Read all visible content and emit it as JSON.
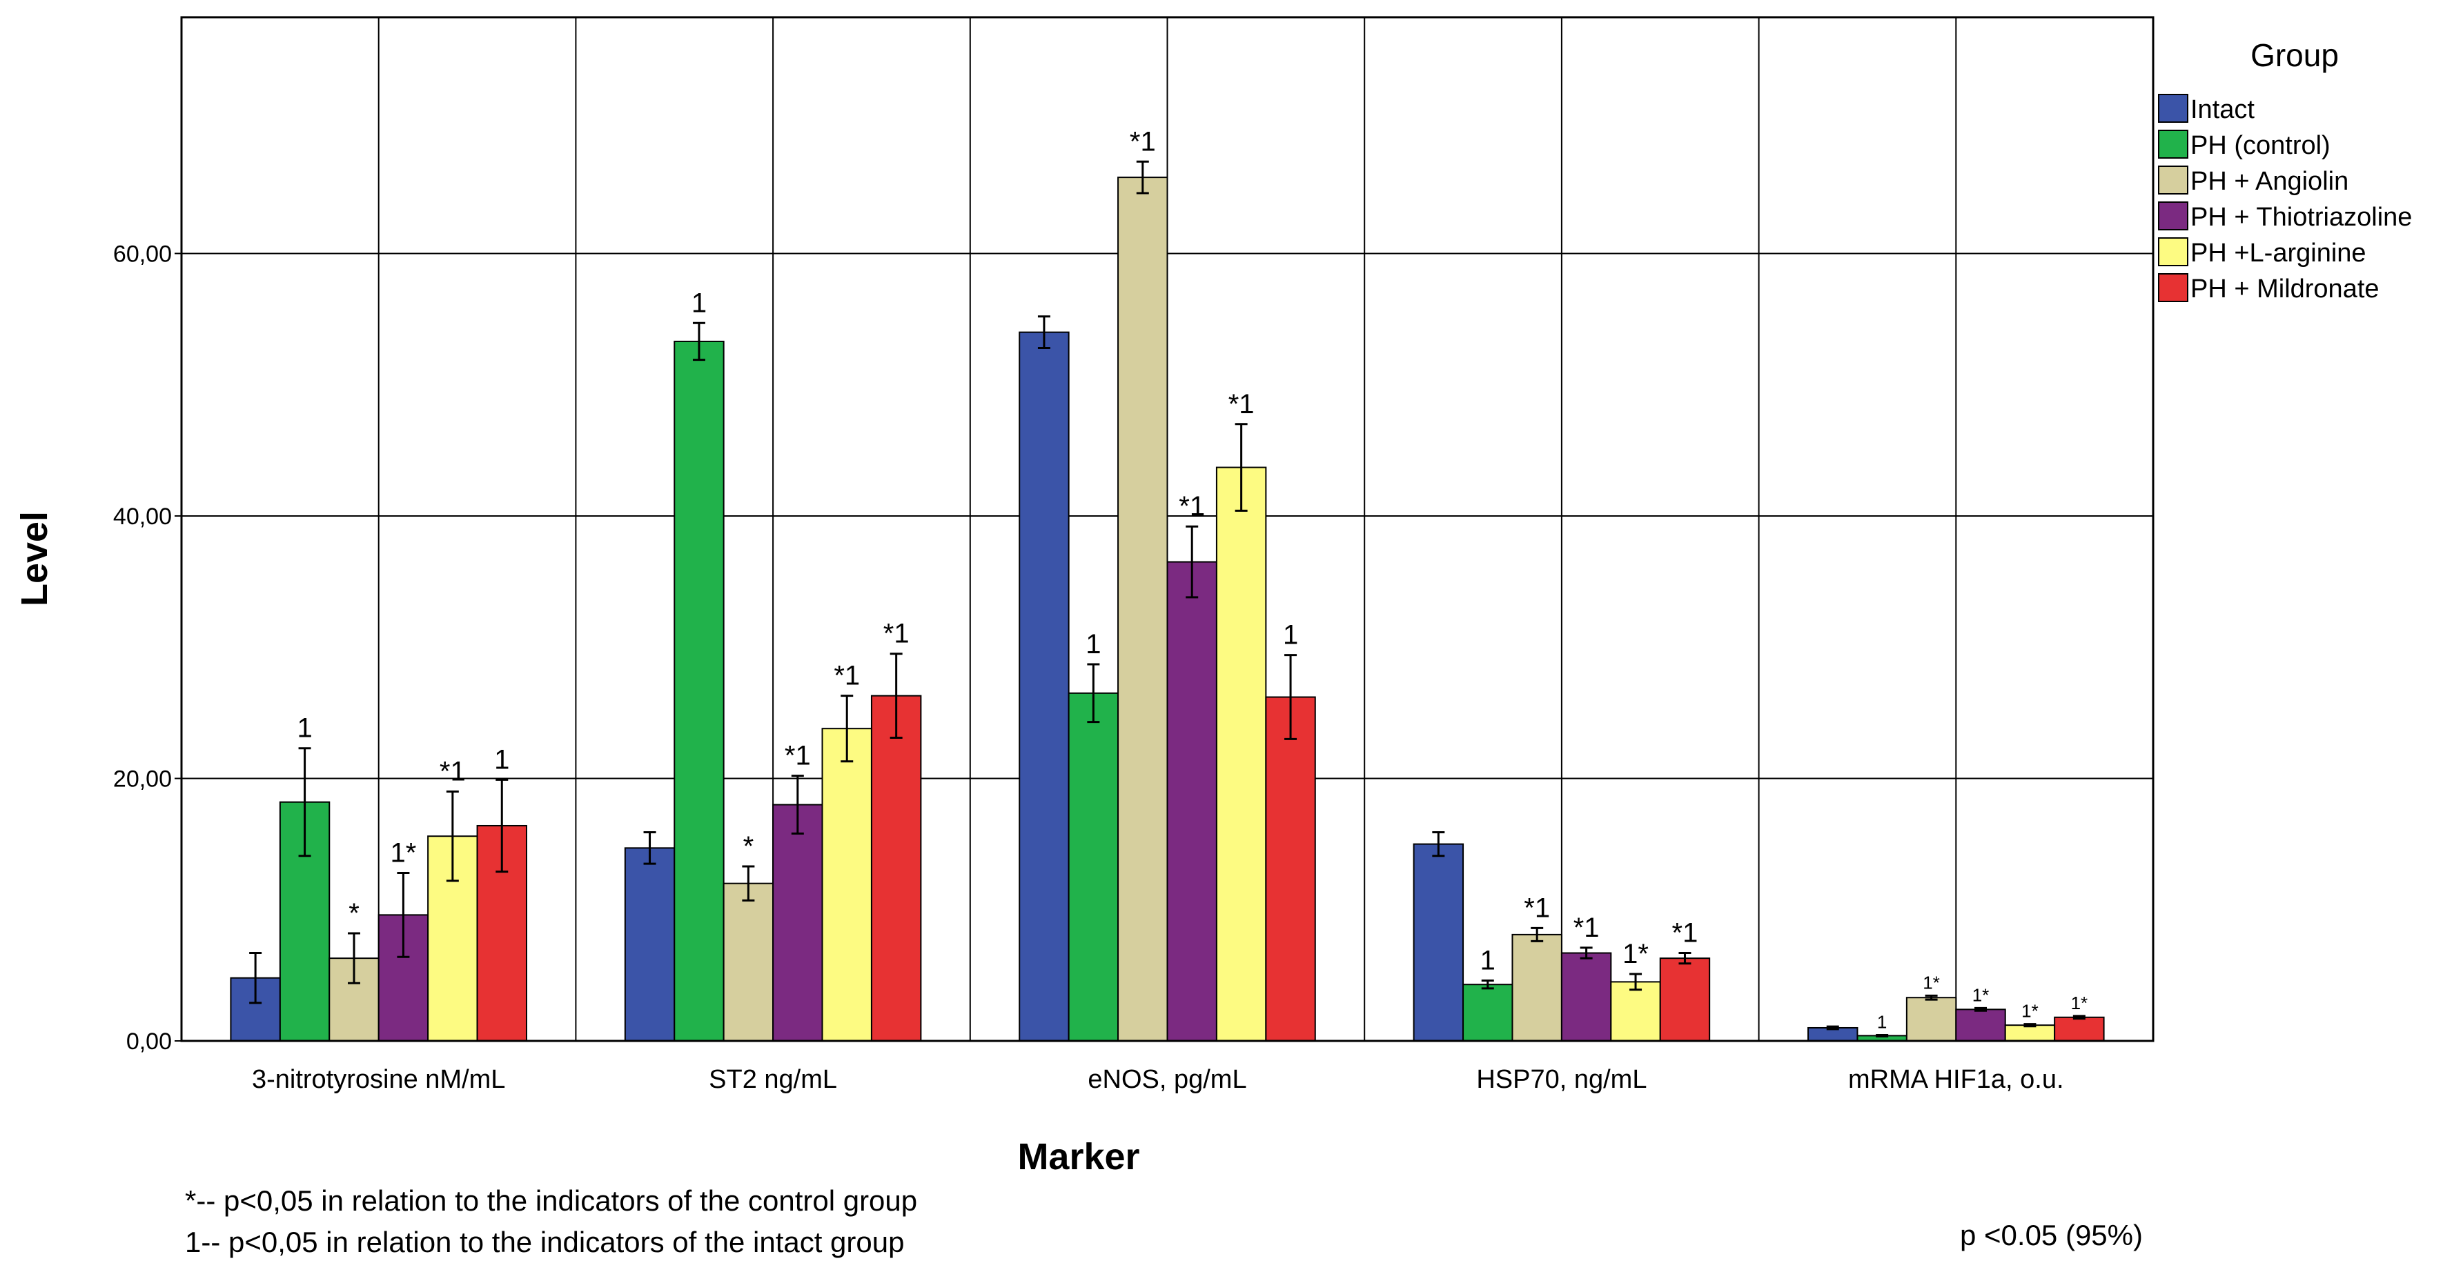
{
  "chart_data": {
    "type": "bar",
    "xlabel": "Marker",
    "ylabel": "Level",
    "ylim": [
      0,
      78
    ],
    "yticks": [
      {
        "value": 0,
        "label": "0,00"
      },
      {
        "value": 20,
        "label": "20,00"
      },
      {
        "value": 40,
        "label": "40,00"
      },
      {
        "value": 60,
        "label": "60,00"
      }
    ],
    "grid": true,
    "legend_title": "Group",
    "legend_position": "right",
    "categories": [
      "3-nitrotyrosine nM/mL",
      "ST2 ng/mL",
      "eNOS, pg/mL",
      "HSP70, ng/mL",
      "mRMA HIF1a, o.u."
    ],
    "series": [
      {
        "name": "Intact",
        "color": "#3b54a8",
        "values": [
          4.8,
          14.7,
          54.0,
          15.0,
          1.0
        ],
        "errors": [
          1.9,
          1.2,
          1.2,
          0.9,
          0.1
        ],
        "annotations": [
          "",
          "",
          "",
          "",
          ""
        ]
      },
      {
        "name": "PH (control)",
        "color": "#21b24b",
        "values": [
          18.2,
          53.3,
          26.5,
          4.3,
          0.4
        ],
        "errors": [
          4.1,
          1.4,
          2.2,
          0.3,
          0.05
        ],
        "annotations": [
          "1",
          "1",
          "1",
          "1",
          "1"
        ]
      },
      {
        "name": "PH + Angiolin",
        "color": "#d6cf9e",
        "values": [
          6.3,
          12.0,
          65.8,
          8.1,
          3.3
        ],
        "errors": [
          1.9,
          1.3,
          1.2,
          0.5,
          0.15
        ],
        "annotations": [
          "*",
          "*",
          "*1",
          "*1",
          "1*"
        ]
      },
      {
        "name": "PH + Thiotriazoline",
        "color": "#7b2a81",
        "values": [
          9.6,
          18.0,
          36.5,
          6.7,
          2.4
        ],
        "errors": [
          3.2,
          2.2,
          2.7,
          0.4,
          0.1
        ],
        "annotations": [
          "1*",
          "*1",
          "*1",
          "*1",
          "1*"
        ]
      },
      {
        "name": "PH +L-arginine",
        "color": "#fdfb82",
        "values": [
          15.6,
          23.8,
          43.7,
          4.5,
          1.2
        ],
        "errors": [
          3.4,
          2.5,
          3.3,
          0.6,
          0.08
        ],
        "annotations": [
          "*1",
          "*1",
          "*1",
          "1*",
          "1*"
        ]
      },
      {
        "name": "PH + Mildronate",
        "color": "#e73233",
        "values": [
          16.4,
          26.3,
          26.2,
          6.3,
          1.8
        ],
        "errors": [
          3.5,
          3.2,
          3.2,
          0.4,
          0.1
        ],
        "annotations": [
          "1",
          "*1",
          "1",
          "*1",
          "1*"
        ]
      }
    ]
  },
  "footnotes": {
    "control": "*-- p<0,05 in relation to the indicators of the control group",
    "intact": "1-- p<0,05 in relation to the indicators of the intact group",
    "significance": "p <0.05 (95%)"
  }
}
